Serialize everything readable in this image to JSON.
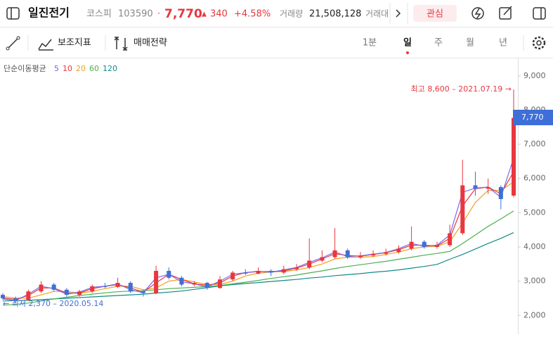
{
  "header": {
    "name": "일진전기",
    "market": "코스피",
    "code": "103590",
    "dot": "·",
    "price": "7,770",
    "arrow": "▲",
    "change": "340",
    "change_pct": "+4.58%",
    "volume_label": "거래량",
    "volume": "21,508,128",
    "amount_label": "거래대",
    "watch": "관심"
  },
  "toolbar": {
    "indicators": "보조지표",
    "strategy": "매매전략",
    "periods": [
      "1분",
      "일",
      "주",
      "월",
      "년"
    ]
  },
  "chart_data": {
    "type": "candlestick",
    "ma_label": "단순이동평균",
    "ylim": [
      1450,
      9510
    ],
    "yticks": [
      {
        "value": 9000,
        "label": "9,000"
      },
      {
        "value": 8000,
        "label": "8,000"
      },
      {
        "value": 7000,
        "label": "7,000"
      },
      {
        "value": 6000,
        "label": "6,000"
      },
      {
        "value": 5000,
        "label": "5,000"
      },
      {
        "value": 4000,
        "label": "4,000"
      },
      {
        "value": 3000,
        "label": "3,000"
      },
      {
        "value": 2000,
        "label": "2,000"
      }
    ],
    "up_color": "#e8373e",
    "down_color": "#3e6fd8",
    "candles": {
      "open": [
        2600,
        2500,
        2450,
        2700,
        2900,
        2750,
        2600,
        2700,
        2850,
        2830,
        2950,
        2700,
        2650,
        3300,
        3100,
        2900,
        2950,
        2800,
        3050,
        3250,
        3220,
        3300,
        3250,
        3350,
        3400,
        3600,
        3700,
        3900,
        3700,
        3750,
        3800,
        3850,
        3950,
        4150,
        4000,
        4050,
        4400,
        5800,
        5700,
        5750,
        5500
      ],
      "high": [
        2650,
        2550,
        2750,
        3000,
        2950,
        2800,
        2750,
        2900,
        2950,
        3100,
        3000,
        2750,
        3450,
        3400,
        3150,
        3000,
        2980,
        3150,
        3300,
        3350,
        3400,
        3350,
        3450,
        3500,
        4250,
        3900,
        4550,
        3950,
        3850,
        3900,
        3950,
        4050,
        4600,
        4200,
        4150,
        4650,
        6550,
        6200,
        6000,
        5800,
        8600
      ],
      "low": [
        2450,
        2370,
        2430,
        2650,
        2700,
        2550,
        2550,
        2650,
        2800,
        2800,
        2650,
        2550,
        2620,
        3050,
        2850,
        2850,
        2750,
        2780,
        3000,
        3180,
        3200,
        3150,
        3200,
        3300,
        3350,
        3550,
        3650,
        3650,
        3650,
        3700,
        3750,
        3800,
        3900,
        3950,
        3950,
        4000,
        4350,
        5500,
        5550,
        5100,
        5450
      ],
      "close": [
        2500,
        2450,
        2700,
        2900,
        2750,
        2600,
        2700,
        2850,
        2830,
        2950,
        2700,
        2650,
        3300,
        3100,
        2900,
        2950,
        2800,
        3050,
        3250,
        3220,
        3300,
        3250,
        3350,
        3400,
        3600,
        3700,
        3900,
        3700,
        3750,
        3800,
        3850,
        3950,
        4150,
        4000,
        4050,
        4400,
        5800,
        5700,
        5750,
        5400,
        7770
      ]
    },
    "series": [
      {
        "name": "5",
        "color": "#7b68ee",
        "values": [
          2480,
          2430,
          2620,
          2850,
          2780,
          2620,
          2680,
          2820,
          2850,
          2920,
          2750,
          2660,
          3100,
          3200,
          2980,
          2920,
          2830,
          3000,
          3200,
          3250,
          3290,
          3260,
          3330,
          3400,
          3550,
          3680,
          3850,
          3720,
          3740,
          3790,
          3840,
          3950,
          4100,
          4020,
          4050,
          4350,
          5600,
          5720,
          5750,
          5450,
          6600
        ]
      },
      {
        "name": "10",
        "color": "#e8373e",
        "values": [
          2500,
          2470,
          2580,
          2800,
          2800,
          2650,
          2650,
          2780,
          2850,
          2900,
          2800,
          2680,
          2950,
          3200,
          3050,
          2920,
          2880,
          2950,
          3150,
          3250,
          3280,
          3280,
          3300,
          3380,
          3500,
          3650,
          3800,
          3750,
          3730,
          3780,
          3830,
          3920,
          4050,
          4050,
          4030,
          4250,
          5200,
          5700,
          5750,
          5550,
          6200
        ]
      },
      {
        "name": "20",
        "color": "#f0a020",
        "values": [
          2550,
          2500,
          2500,
          2600,
          2700,
          2700,
          2650,
          2700,
          2780,
          2850,
          2850,
          2750,
          2800,
          3000,
          3050,
          2980,
          2900,
          2900,
          3000,
          3150,
          3230,
          3270,
          3280,
          3330,
          3400,
          3500,
          3650,
          3700,
          3700,
          3720,
          3780,
          3850,
          3950,
          4000,
          4020,
          4150,
          4700,
          5300,
          5650,
          5650,
          5900
        ]
      },
      {
        "name": "60",
        "color": "#4caf50",
        "values": [
          2300,
          2320,
          2360,
          2420,
          2480,
          2530,
          2580,
          2620,
          2660,
          2690,
          2710,
          2720,
          2750,
          2780,
          2800,
          2820,
          2840,
          2870,
          2920,
          2970,
          3020,
          3080,
          3130,
          3180,
          3240,
          3300,
          3370,
          3430,
          3480,
          3530,
          3580,
          3640,
          3700,
          3760,
          3810,
          3870,
          4100,
          4350,
          4600,
          4820,
          5050
        ]
      },
      {
        "name": "120",
        "color": "#138a8a",
        "values": [
          2420,
          2430,
          2440,
          2460,
          2480,
          2500,
          2520,
          2540,
          2560,
          2580,
          2600,
          2620,
          2650,
          2680,
          2710,
          2760,
          2810,
          2860,
          2900,
          2930,
          2960,
          2990,
          3020,
          3050,
          3090,
          3120,
          3160,
          3190,
          3220,
          3260,
          3290,
          3330,
          3380,
          3430,
          3490,
          3640,
          3780,
          3940,
          4100,
          4250,
          4420
        ]
      }
    ],
    "high_annotation": "최고 8,600 – 2021.07.19 →",
    "low_annotation": "← 최저 2,370 – 2020.05.14",
    "last_price_label": "7,770"
  }
}
